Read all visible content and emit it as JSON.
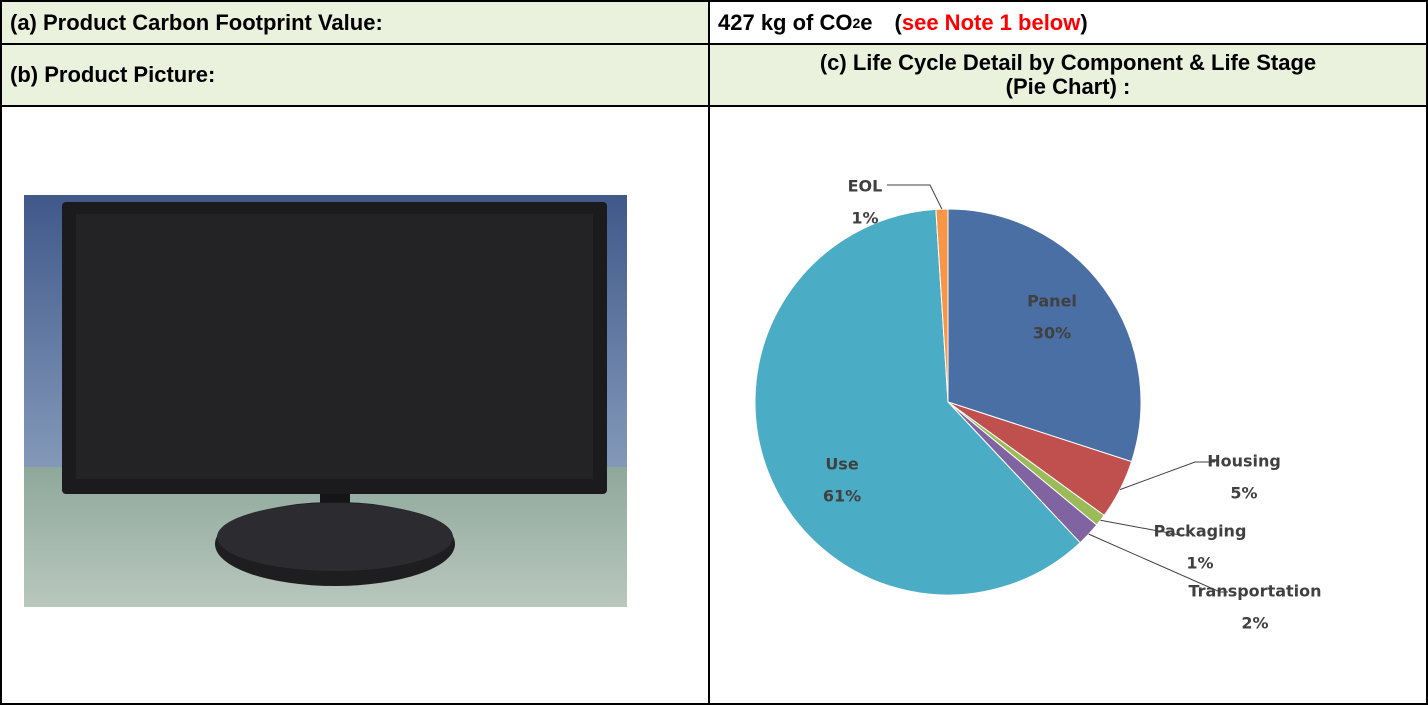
{
  "footprint": {
    "label": "(a) Product Carbon Footprint Value:",
    "value": "427 kg of CO",
    "subscript": "2",
    "value_end": "e",
    "note_open": "(",
    "note": "see Note 1 below",
    "note_close": ")"
  },
  "picture": {
    "label": "(b) Product Picture:"
  },
  "chart_section": {
    "title_lines": [
      "(c) Life Cycle Detail by Component & Life Stage",
      "(Pie Chart) :"
    ]
  },
  "chart_data": {
    "type": "pie",
    "categories": [
      "Panel",
      "Housing",
      "Packaging",
      "Transportation",
      "Use",
      "EOL"
    ],
    "values": [
      30,
      5,
      1,
      2,
      61,
      1
    ],
    "value_labels": [
      "30%",
      "5%",
      "1%",
      "2%",
      "61%",
      "1%"
    ],
    "colors": [
      "#4a6fa5",
      "#c0504d",
      "#9bbb59",
      "#8064a2",
      "#4bacc6",
      "#f79646"
    ]
  }
}
